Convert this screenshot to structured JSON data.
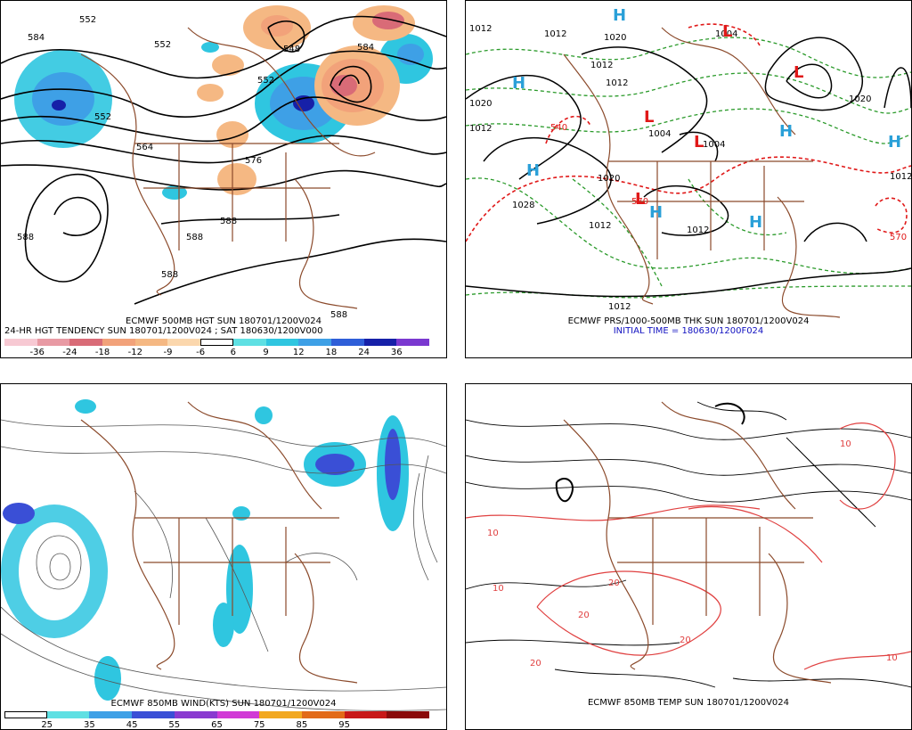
{
  "panels": {
    "p1": {
      "caption1": "ECMWF 500MB HGT SUN 180701/1200V024",
      "caption2": "24-HR HGT TENDENCY SUN 180701/1200V024 ; SAT 180630/1200V000",
      "contour_labels": [
        "552",
        "584",
        "552",
        "552",
        "548",
        "584",
        "552",
        "564",
        "576",
        "588",
        "588",
        "588",
        "588",
        "588"
      ],
      "colorbar": {
        "ticks": [
          "-36",
          "-24",
          "-18",
          "-12",
          "-9",
          "-6",
          "6",
          "9",
          "12",
          "18",
          "24",
          "36"
        ],
        "colors": [
          "#f7c9d3",
          "#e89aa4",
          "#d96b77",
          "#f2a27a",
          "#f5b883",
          "#fbd7ad",
          "#ffffff",
          "#5fe0e3",
          "#2fc6e0",
          "#3ea0e6",
          "#2e5ed8",
          "#1620a8",
          "#7a38d0"
        ]
      }
    },
    "p2": {
      "caption1": "ECMWF PRS/1000-500MB THK SUN 180701/1200V024",
      "caption2": "INITIAL TIME = 180630/1200F024",
      "isobar_labels": [
        "1012",
        "1012",
        "1020",
        "1012",
        "1020",
        "1004",
        "1012",
        "1004",
        "1020",
        "1028",
        "1012",
        "1012",
        "1004",
        "1020",
        "1012",
        "1012"
      ],
      "thickness_labels": [
        "540",
        "570",
        "570"
      ],
      "highs": [
        "H",
        "H",
        "H",
        "H",
        "H",
        "H",
        "H"
      ],
      "lows": [
        "L",
        "L",
        "L",
        "L",
        "L"
      ]
    },
    "p3": {
      "caption1": "ECMWF 850MB WIND(KTS) SUN 180701/1200V024",
      "colorbar": {
        "ticks": [
          "25",
          "35",
          "45",
          "55",
          "65",
          "75",
          "85",
          "95"
        ],
        "colors": [
          "#ffffff",
          "#5fe0e3",
          "#3ea0e6",
          "#3a4fd6",
          "#8a3ad0",
          "#d13ad6",
          "#f2a820",
          "#e26a18",
          "#c81818",
          "#8a0a0a"
        ]
      }
    },
    "p4": {
      "caption1": "ECMWF 850MB TEMP SUN 180701/1200V024",
      "temp_labels": [
        "10",
        "20",
        "20",
        "20",
        "10",
        "10",
        "10",
        "20"
      ]
    }
  }
}
